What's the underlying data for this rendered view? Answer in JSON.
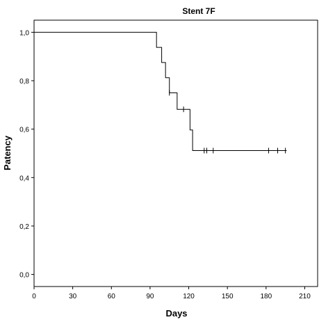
{
  "chart_data": {
    "type": "line",
    "title": "Stent 7F",
    "xlabel": "Days",
    "ylabel": "Patency",
    "xlim": [
      0,
      220
    ],
    "ylim": [
      -0.05,
      1.05
    ],
    "x_ticks": [
      0,
      30,
      60,
      90,
      120,
      150,
      180,
      210
    ],
    "x_tick_labels": [
      "0",
      "30",
      "60",
      "90",
      "120",
      "150",
      "180",
      "210"
    ],
    "y_ticks": [
      0.0,
      0.2,
      0.4,
      0.6,
      0.8,
      1.0
    ],
    "y_tick_labels": [
      "0,0",
      "0,2",
      "0,4",
      "0,6",
      "0,8",
      "1,0"
    ],
    "grid": false,
    "legend": "none",
    "step_curve": {
      "x": [
        0,
        95,
        99,
        102,
        105,
        111,
        121,
        123,
        196
      ],
      "y": [
        1.0,
        0.9375,
        0.875,
        0.8125,
        0.75,
        0.6818,
        0.5966,
        0.5114,
        0.5114
      ]
    },
    "censored": [
      {
        "x": 105,
        "y": 0.75
      },
      {
        "x": 116,
        "y": 0.6818
      },
      {
        "x": 132,
        "y": 0.5114
      },
      {
        "x": 134,
        "y": 0.5114
      },
      {
        "x": 139,
        "y": 0.5114
      },
      {
        "x": 182,
        "y": 0.5114
      },
      {
        "x": 189,
        "y": 0.5114
      },
      {
        "x": 195,
        "y": 0.5114
      }
    ]
  }
}
